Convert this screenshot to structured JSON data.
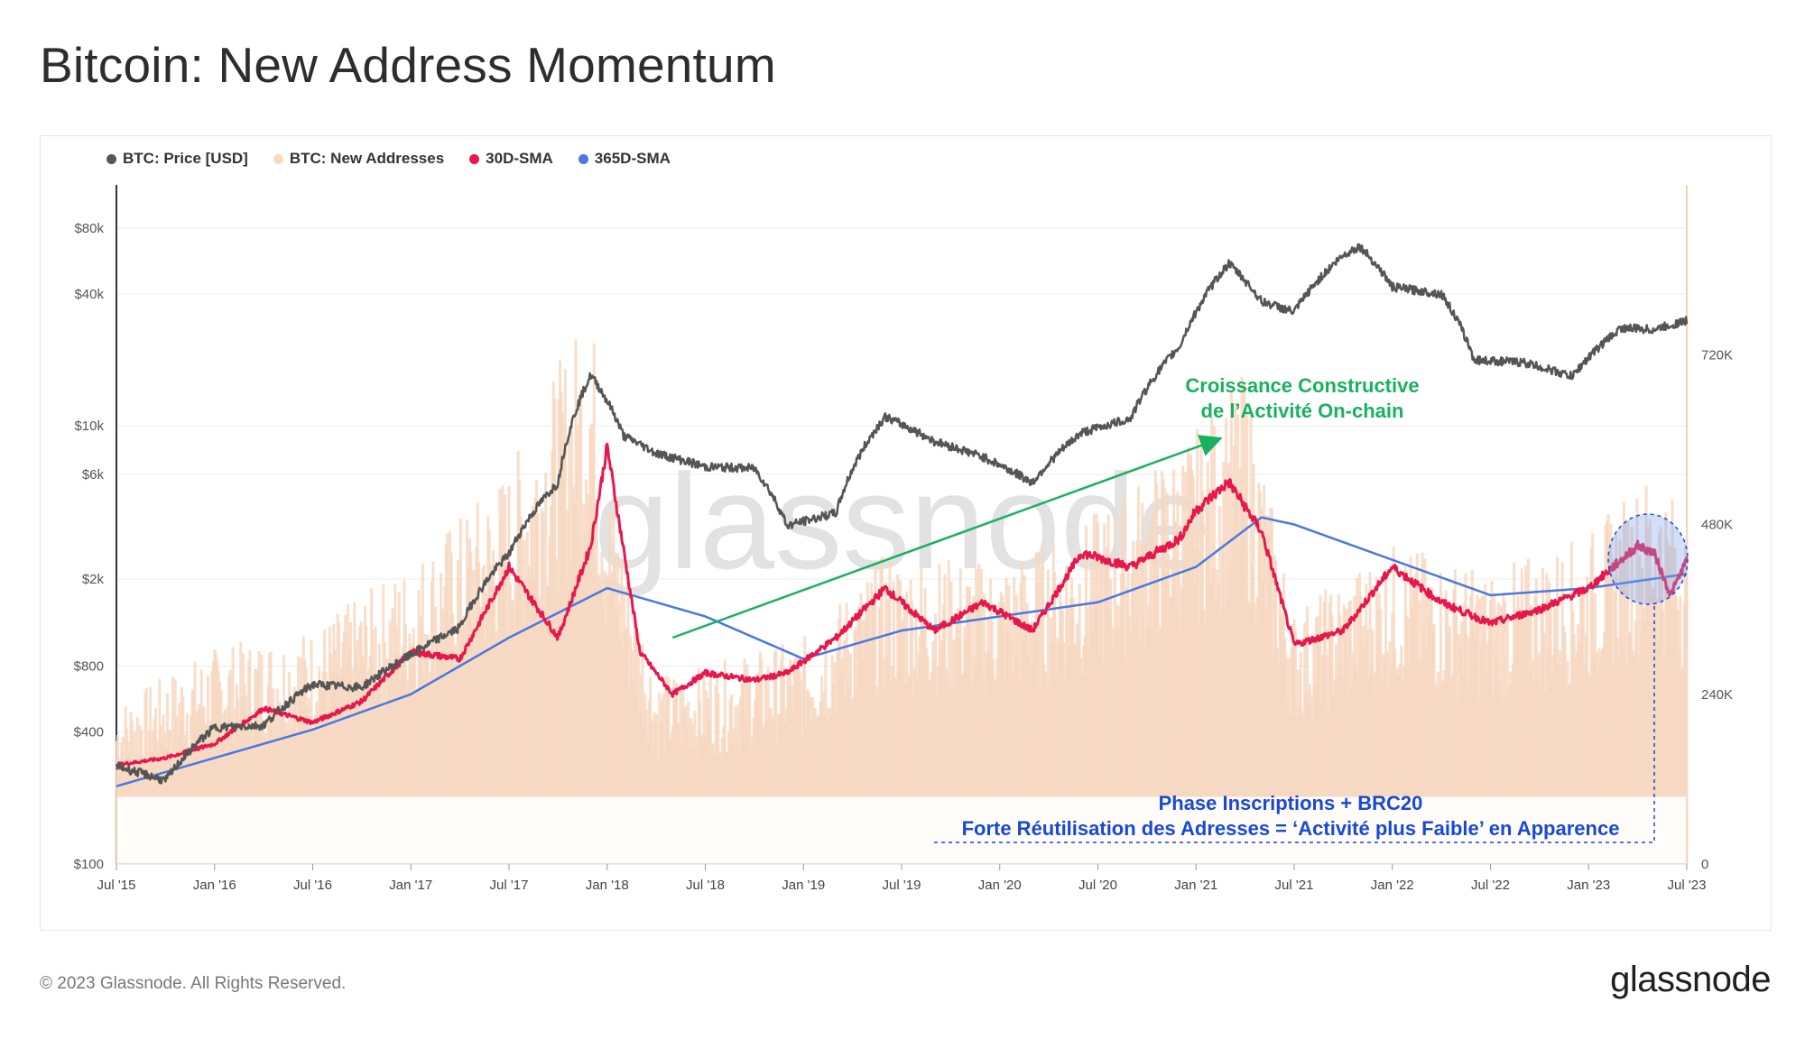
{
  "title": "Bitcoin: New Address Momentum",
  "legend": [
    {
      "label": "BTC: Price [USD]",
      "color": "#555555"
    },
    {
      "label": "BTC: New Addresses",
      "color": "#f7d9c2"
    },
    {
      "label": "30D-SMA",
      "color": "#e8174b"
    },
    {
      "label": "365D-SMA",
      "color": "#4a78e0"
    }
  ],
  "footer": "© 2023 Glassnode. All Rights Reserved.",
  "brand": "glassnode",
  "watermark": "glassnode",
  "chart_data": {
    "type": "line",
    "x_ticks": [
      "Jul '15",
      "Jan '16",
      "Jul '16",
      "Jan '17",
      "Jul '17",
      "Jan '18",
      "Jul '18",
      "Jan '19",
      "Jul '19",
      "Jan '20",
      "Jul '20",
      "Jan '21",
      "Jul '21",
      "Jan '22",
      "Jul '22",
      "Jan '23",
      "Jul '23"
    ],
    "y_left_scale": "log",
    "y_left_ticks": [
      "$100",
      "$400",
      "$800",
      "$2k",
      "$6k",
      "$10k",
      "$40k",
      "$80k"
    ],
    "y_left_values": [
      100,
      400,
      800,
      2000,
      6000,
      10000,
      40000,
      80000
    ],
    "y_right_ticks": [
      "0",
      "240K",
      "480K",
      "720K"
    ],
    "y_right_values": [
      0,
      240000,
      480000,
      720000
    ],
    "grid": true,
    "legend_position": "top-left",
    "series": [
      {
        "name": "BTC: Price [USD]",
        "axis": "left",
        "color": "#555555",
        "x": [
          "2015-07",
          "2015-10",
          "2016-01",
          "2016-04",
          "2016-07",
          "2016-10",
          "2017-01",
          "2017-04",
          "2017-07",
          "2017-10",
          "2017-12",
          "2018-02",
          "2018-04",
          "2018-07",
          "2018-10",
          "2018-12",
          "2019-03",
          "2019-06",
          "2019-09",
          "2019-12",
          "2020-03",
          "2020-06",
          "2020-09",
          "2020-12",
          "2021-01",
          "2021-03",
          "2021-05",
          "2021-07",
          "2021-10",
          "2021-11",
          "2022-01",
          "2022-04",
          "2022-06",
          "2022-09",
          "2022-12",
          "2023-03",
          "2023-05",
          "2023-07"
        ],
        "values": [
          280,
          240,
          420,
          430,
          660,
          640,
          900,
          1200,
          2600,
          5500,
          17000,
          9000,
          7500,
          6500,
          6400,
          3500,
          4000,
          11000,
          8500,
          7200,
          5500,
          9300,
          10800,
          23000,
          33000,
          55000,
          37000,
          33000,
          60000,
          66000,
          43000,
          40000,
          20000,
          19500,
          16800,
          28000,
          27500,
          30200
        ]
      },
      {
        "name": "BTC: New Addresses",
        "axis": "right",
        "color": "#f7d9c2",
        "x": [
          "2015-07",
          "2016-01",
          "2016-07",
          "2017-01",
          "2017-07",
          "2017-12",
          "2018-01",
          "2018-04",
          "2018-07",
          "2019-01",
          "2019-06",
          "2020-01",
          "2020-06",
          "2021-01",
          "2021-04",
          "2021-07",
          "2022-01",
          "2022-07",
          "2023-01",
          "2023-05",
          "2023-07"
        ],
        "values": [
          170000,
          230000,
          250000,
          320000,
          420000,
          600000,
          420000,
          200000,
          210000,
          240000,
          330000,
          320000,
          360000,
          460000,
          520000,
          270000,
          340000,
          310000,
          350000,
          420000,
          370000
        ]
      },
      {
        "name": "30D-SMA",
        "axis": "right",
        "color": "#e8174b",
        "x": [
          "2015-07",
          "2015-10",
          "2016-01",
          "2016-04",
          "2016-07",
          "2016-10",
          "2017-01",
          "2017-04",
          "2017-07",
          "2017-10",
          "2017-12",
          "2018-01",
          "2018-03",
          "2018-05",
          "2018-07",
          "2018-10",
          "2018-12",
          "2019-03",
          "2019-06",
          "2019-09",
          "2019-12",
          "2020-03",
          "2020-06",
          "2020-09",
          "2020-12",
          "2021-01",
          "2021-03",
          "2021-05",
          "2021-07",
          "2021-10",
          "2022-01",
          "2022-04",
          "2022-07",
          "2022-10",
          "2023-01",
          "2023-04",
          "2023-05",
          "2023-06",
          "2023-07"
        ],
        "values": [
          140000,
          150000,
          170000,
          220000,
          200000,
          230000,
          300000,
          290000,
          420000,
          320000,
          450000,
          590000,
          300000,
          240000,
          270000,
          260000,
          270000,
          320000,
          390000,
          330000,
          370000,
          330000,
          440000,
          420000,
          460000,
          500000,
          540000,
          470000,
          310000,
          330000,
          420000,
          370000,
          340000,
          360000,
          390000,
          450000,
          440000,
          380000,
          430000
        ]
      },
      {
        "name": "365D-SMA",
        "axis": "right",
        "color": "#4a78e0",
        "x": [
          "2015-07",
          "2016-01",
          "2016-07",
          "2017-01",
          "2017-07",
          "2018-01",
          "2018-07",
          "2019-01",
          "2019-07",
          "2020-01",
          "2020-07",
          "2021-01",
          "2021-05",
          "2021-07",
          "2022-01",
          "2022-07",
          "2023-01",
          "2023-07"
        ],
        "values": [
          110000,
          150000,
          190000,
          240000,
          320000,
          390000,
          350000,
          290000,
          330000,
          350000,
          370000,
          420000,
          490000,
          480000,
          430000,
          380000,
          390000,
          410000
        ]
      }
    ],
    "annotations": [
      {
        "text": "Croissance Constructive",
        "color": "#19b15f"
      },
      {
        "text": "de l’Activité On-chain",
        "color": "#19b15f"
      },
      {
        "text": "Phase Inscriptions + BRC20",
        "color": "#1848d6"
      },
      {
        "text": "Forte Réutilisation des Adresses = ‘Activité plus Faible’ en Apparence",
        "color": "#1848d6"
      }
    ]
  }
}
